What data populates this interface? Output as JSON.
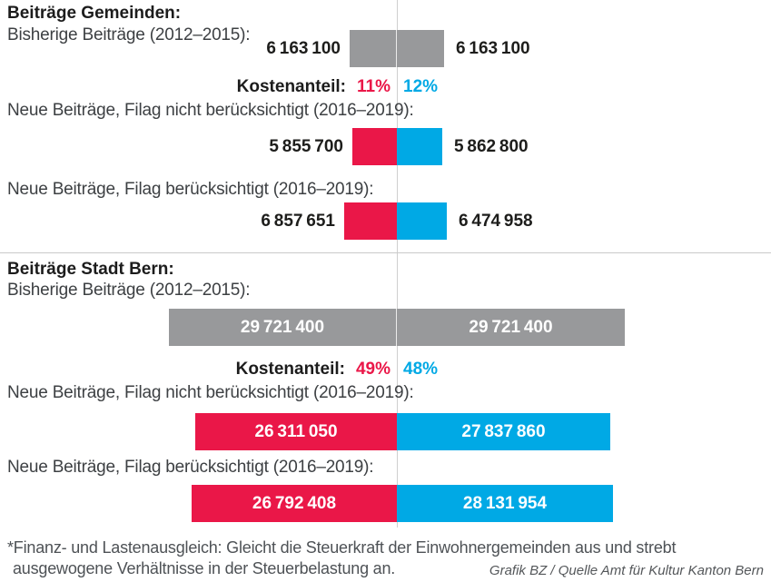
{
  "colors": {
    "red": "#ea1748",
    "blue": "#00a9e5",
    "gray": "#98999b",
    "line": "#cfcfcf"
  },
  "sections": [
    {
      "title": "Beiträge Gemeinden:",
      "rows": [
        {
          "label": "Bisherige Beiträge (2012–2015):",
          "left_value": 6163100,
          "right_value": 6163100,
          "left_display": "6 163 100",
          "right_display": "6 163 100"
        },
        {
          "label": "Neue Beiträge, Filag nicht berücksichtigt (2016–2019):",
          "left_value": 5855700,
          "right_value": 5862800,
          "left_display": "5 855 700",
          "right_display": "5 862 800"
        },
        {
          "label": "Neue Beiträge, Filag berücksichtigt (2016–2019):",
          "left_value": 6857651,
          "right_value": 6474958,
          "left_display": "6 857 651",
          "right_display": "6 474 958"
        }
      ],
      "kostenanteil": {
        "label": "Kostenanteil:",
        "red": "11%",
        "blue": "12%"
      }
    },
    {
      "title": "Beiträge Stadt Bern:",
      "rows": [
        {
          "label": "Bisherige Beiträge (2012–2015):",
          "left_value": 29721400,
          "right_value": 29721400,
          "left_display": "29 721 400",
          "right_display": "29 721 400"
        },
        {
          "label": "Neue Beiträge, Filag nicht berücksichtigt (2016–2019):",
          "left_value": 26311050,
          "right_value": 27837860,
          "left_display": "26 311 050",
          "right_display": "27 837 860"
        },
        {
          "label": "Neue Beiträge, Filag berücksichtigt (2016–2019):",
          "left_value": 26792408,
          "right_value": 28131954,
          "left_display": "26 792 408",
          "right_display": "28 131 954"
        }
      ],
      "kostenanteil": {
        "label": "Kostenanteil:",
        "red": "49%",
        "blue": "48%"
      }
    }
  ],
  "footnote": {
    "line1": "*Finanz- und Lastenausgleich: Gleicht die Steuerkraft der Einwohnergemeinden aus und strebt",
    "line2": "ausgewogene Verhältnisse in der Steuerbelastung an."
  },
  "credit": "Grafik BZ / Quelle Amt für Kultur Kanton Bern",
  "chart_data": {
    "type": "bar",
    "orientation": "horizontal-diverging",
    "title": "Beiträge Gemeinden / Beiträge Stadt Bern",
    "legend_position": "none",
    "grid": false,
    "series": [
      {
        "name": "links (rot)",
        "color": "#ea1748"
      },
      {
        "name": "rechts (blau)",
        "color": "#00a9e5"
      }
    ],
    "groups": [
      {
        "title": "Beiträge Gemeinden",
        "rows": [
          {
            "label": "Bisherige Beiträge (2012–2015)",
            "left": 6163100,
            "right": 6163100,
            "color": "gray"
          },
          {
            "label": "Kostenanteil",
            "left": "11%",
            "right": "12%"
          },
          {
            "label": "Neue Beiträge, Filag nicht berücksichtigt (2016–2019)",
            "left": 5855700,
            "right": 5862800
          },
          {
            "label": "Neue Beiträge, Filag berücksichtigt (2016–2019)",
            "left": 6857651,
            "right": 6474958
          }
        ]
      },
      {
        "title": "Beiträge Stadt Bern",
        "rows": [
          {
            "label": "Bisherige Beiträge (2012–2015)",
            "left": 29721400,
            "right": 29721400,
            "color": "gray"
          },
          {
            "label": "Kostenanteil",
            "left": "49%",
            "right": "48%"
          },
          {
            "label": "Neue Beiträge, Filag nicht berücksichtigt (2016–2019)",
            "left": 26311050,
            "right": 27837860
          },
          {
            "label": "Neue Beiträge, Filag berücksichtigt (2016–2019)",
            "left": 26792408,
            "right": 28131954
          }
        ]
      }
    ]
  }
}
